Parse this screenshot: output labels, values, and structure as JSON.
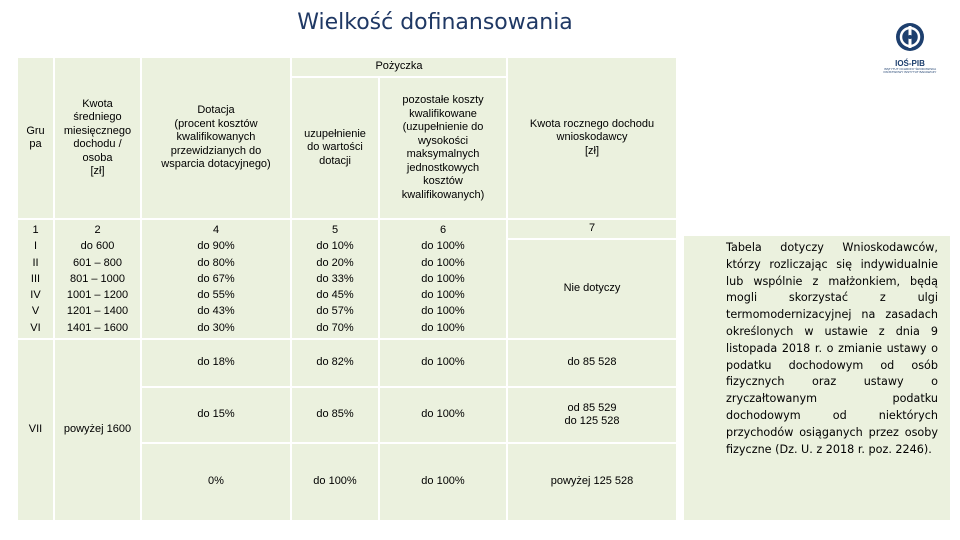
{
  "title": "Wielkość dofinansowania",
  "logo": {
    "name": "IOŚ-PIB",
    "subtitle": "INSTYTUT OCHRONY ŚRODOWISKA PAŃSTWOWY INSTYTUT BADAWCZY",
    "icon": "ios-pib-logo-icon",
    "color": "#1d3f6e"
  },
  "table": {
    "pozyczka_label": "Pożyczka",
    "headers": {
      "grupa": [
        "Gru",
        "pa"
      ],
      "kwota": [
        "Kwota",
        "średniego",
        "miesięcznego",
        "dochodu /",
        "osoba",
        "[zł]"
      ],
      "dotacja": [
        "Dotacja",
        "(procent kosztów",
        "kwalifikowanych",
        "przewidzianych do",
        "wsparcia dotacyjnego)"
      ],
      "uzupelnienie": [
        "uzupełnienie",
        "do wartości",
        "dotacji"
      ],
      "pozostale": [
        "pozostałe koszty",
        "kwalifikowane",
        "(uzupełnienie do",
        "wysokości",
        "maksymalnych",
        "jednostkowych",
        "kosztów",
        "kwalifikowanych)"
      ],
      "roczny": [
        "Kwota rocznego dochodu",
        "wnioskodawcy",
        "[zł]"
      ]
    },
    "group_col": [
      "1",
      "I",
      "II",
      "III",
      "IV",
      "V",
      "VI"
    ],
    "kwota_col": [
      "2",
      "do 600",
      "601 – 800",
      "801 – 1000",
      "1001 – 1200",
      "1201 – 1400",
      "1401 – 1600"
    ],
    "dotacja_col": [
      "4",
      "do 90%",
      "do 80%",
      "do 67%",
      "do 55%",
      "do 43%",
      "do 30%"
    ],
    "uzup_col": [
      "5",
      "do 10%",
      "do 20%",
      "do 33%",
      "do 45%",
      "do 57%",
      "do 70%"
    ],
    "pozost_col": [
      "6",
      "do 100%",
      "do 100%",
      "do 100%",
      "do 100%",
      "do 100%",
      "do 100%"
    ],
    "roczny_num": "7",
    "roczny_nie": "Nie dotyczy",
    "group_vii": "VII",
    "kwota_vii": "powyżej 1600",
    "vii_rows": [
      {
        "dotacja": "do 18%",
        "uzup": "do 82%",
        "pozost": "do 100%",
        "roczny": [
          "do 85 528"
        ]
      },
      {
        "dotacja": "do 15%",
        "uzup": "do 85%",
        "pozost": "do 100%",
        "roczny": [
          "od 85 529",
          "do 125 528"
        ]
      },
      {
        "dotacja": "0%",
        "uzup": "do 100%",
        "pozost": "do 100%",
        "roczny": [
          "powyżej 125 528"
        ]
      }
    ]
  },
  "note": "Tabela dotyczy Wnioskodawców, którzy rozliczając się indywidualnie lub wspólnie z małżonkiem, będą mogli skorzystać z ulgi termomodernizacyjnej na zasadach określonych w ustawie z dnia 9 listopada 2018 r. o zmianie ustawy o podatku dochodowym od osób fizycznych oraz ustawy o zryczałtowanym podatku dochodowym od niektórych przychodów osiąganych przez osoby fizyczne (Dz. U. z 2018 r. poz. 2246)."
}
